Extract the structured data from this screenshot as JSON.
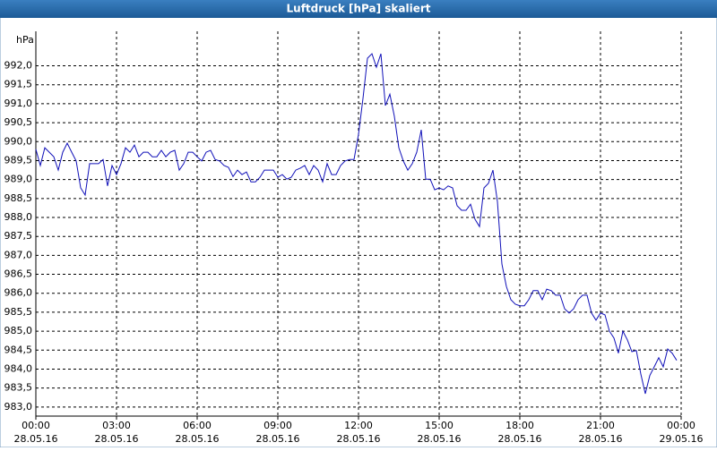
{
  "chart_data": {
    "type": "line",
    "title": "Luftdruck [hPa] skaliert",
    "y_label": "hPa",
    "x": [
      0,
      10,
      20,
      30,
      40,
      50,
      60,
      70,
      80,
      90,
      100,
      110,
      120,
      130,
      140,
      150,
      160,
      170,
      180,
      190,
      200,
      210,
      220,
      230,
      240,
      250,
      260,
      270,
      280,
      290,
      300,
      310,
      320,
      330,
      340,
      350,
      360,
      370,
      380,
      390,
      400,
      410,
      420,
      430,
      440,
      450,
      460,
      470,
      480,
      490,
      500,
      510,
      520,
      530,
      540,
      550,
      560,
      570,
      580,
      590,
      600,
      610,
      620,
      630,
      640,
      650,
      660,
      670,
      680,
      690,
      700,
      710,
      720,
      730,
      740,
      750,
      760,
      770,
      780,
      790,
      800,
      810,
      820,
      830,
      840,
      850,
      860,
      870,
      880,
      890,
      900,
      910,
      920,
      930,
      940,
      950,
      960,
      970,
      980,
      990,
      1000,
      1010,
      1020,
      1030,
      1040,
      1050,
      1060,
      1070,
      1080,
      1090,
      1100,
      1110,
      1120,
      1130,
      1140,
      1150,
      1160,
      1170,
      1180,
      1190,
      1200,
      1210,
      1220,
      1230,
      1240,
      1250,
      1260,
      1270,
      1280,
      1290,
      1300,
      1310,
      1320,
      1330,
      1340,
      1350,
      1360,
      1370,
      1380,
      1390,
      1400,
      1410,
      1420,
      1430
    ],
    "series": [
      {
        "name": "Luftdruck",
        "color": "#1010b8",
        "values": [
          989.8,
          989.37,
          989.84,
          989.72,
          989.6,
          989.25,
          989.72,
          989.96,
          989.72,
          989.49,
          988.78,
          988.59,
          989.42,
          989.42,
          989.42,
          989.53,
          988.83,
          989.37,
          989.13,
          989.42,
          989.84,
          989.72,
          989.91,
          989.6,
          989.72,
          989.72,
          989.6,
          989.6,
          989.77,
          989.6,
          989.72,
          989.77,
          989.25,
          989.42,
          989.72,
          989.72,
          989.6,
          989.49,
          989.72,
          989.77,
          989.53,
          989.49,
          989.37,
          989.32,
          989.08,
          989.25,
          989.13,
          989.2,
          988.94,
          988.94,
          989.06,
          989.25,
          989.25,
          989.25,
          989.06,
          989.13,
          989.01,
          989.06,
          989.25,
          989.3,
          989.37,
          989.13,
          989.37,
          989.25,
          988.94,
          989.42,
          989.13,
          989.13,
          989.37,
          989.49,
          989.53,
          989.53,
          990.19,
          991.14,
          992.2,
          992.32,
          991.96,
          992.32,
          990.95,
          991.25,
          990.67,
          989.84,
          989.49,
          989.25,
          989.42,
          989.72,
          990.31,
          989.01,
          989.01,
          988.73,
          988.78,
          988.73,
          988.83,
          988.78,
          988.31,
          988.19,
          988.19,
          988.35,
          987.95,
          987.76,
          988.78,
          988.9,
          989.25,
          988.42,
          986.77,
          986.18,
          985.83,
          985.71,
          985.67,
          985.67,
          985.83,
          986.07,
          986.07,
          985.83,
          986.11,
          986.07,
          985.95,
          985.95,
          985.59,
          985.48,
          985.59,
          985.83,
          985.95,
          985.95,
          985.48,
          985.29,
          985.48,
          985.43,
          985,
          984.82,
          984.42,
          985,
          984.77,
          984.46,
          984.49,
          983.87,
          983.35,
          983.83,
          984.06,
          984.3,
          984.06,
          984.53,
          984.42,
          984.23
        ]
      }
    ],
    "xlim": [
      0,
      1440
    ],
    "xticks": [
      {
        "value": 0,
        "label": "00:00",
        "date": "28.05.16"
      },
      {
        "value": 180,
        "label": "03:00",
        "date": "28.05.16"
      },
      {
        "value": 360,
        "label": "06:00",
        "date": "28.05.16"
      },
      {
        "value": 540,
        "label": "09:00",
        "date": "28.05.16"
      },
      {
        "value": 720,
        "label": "12:00",
        "date": "28.05.16"
      },
      {
        "value": 900,
        "label": "15:00",
        "date": "28.05.16"
      },
      {
        "value": 1080,
        "label": "18:00",
        "date": "28.05.16"
      },
      {
        "value": 1260,
        "label": "21:00",
        "date": "28.05.16"
      },
      {
        "value": 1440,
        "label": "00:00",
        "date": "29.05.16"
      }
    ],
    "ylim": [
      982.76,
      992.91
    ],
    "yticks": [
      {
        "value": 983,
        "label": "983,0"
      },
      {
        "value": 983.5,
        "label": "983,5"
      },
      {
        "value": 984,
        "label": "984,0"
      },
      {
        "value": 984.5,
        "label": "984,5"
      },
      {
        "value": 985,
        "label": "985,0"
      },
      {
        "value": 985.5,
        "label": "985,5"
      },
      {
        "value": 986,
        "label": "986,0"
      },
      {
        "value": 986.5,
        "label": "986,5"
      },
      {
        "value": 987,
        "label": "987,0"
      },
      {
        "value": 987.5,
        "label": "987,5"
      },
      {
        "value": 988,
        "label": "988,0"
      },
      {
        "value": 988.5,
        "label": "988,5"
      },
      {
        "value": 989,
        "label": "989,0"
      },
      {
        "value": 989.5,
        "label": "989,5"
      },
      {
        "value": 990,
        "label": "990,0"
      },
      {
        "value": 990.5,
        "label": "990,5"
      },
      {
        "value": 991,
        "label": "991,0"
      },
      {
        "value": 991.5,
        "label": "991,5"
      },
      {
        "value": 992,
        "label": "992,0"
      }
    ],
    "grid": true
  }
}
